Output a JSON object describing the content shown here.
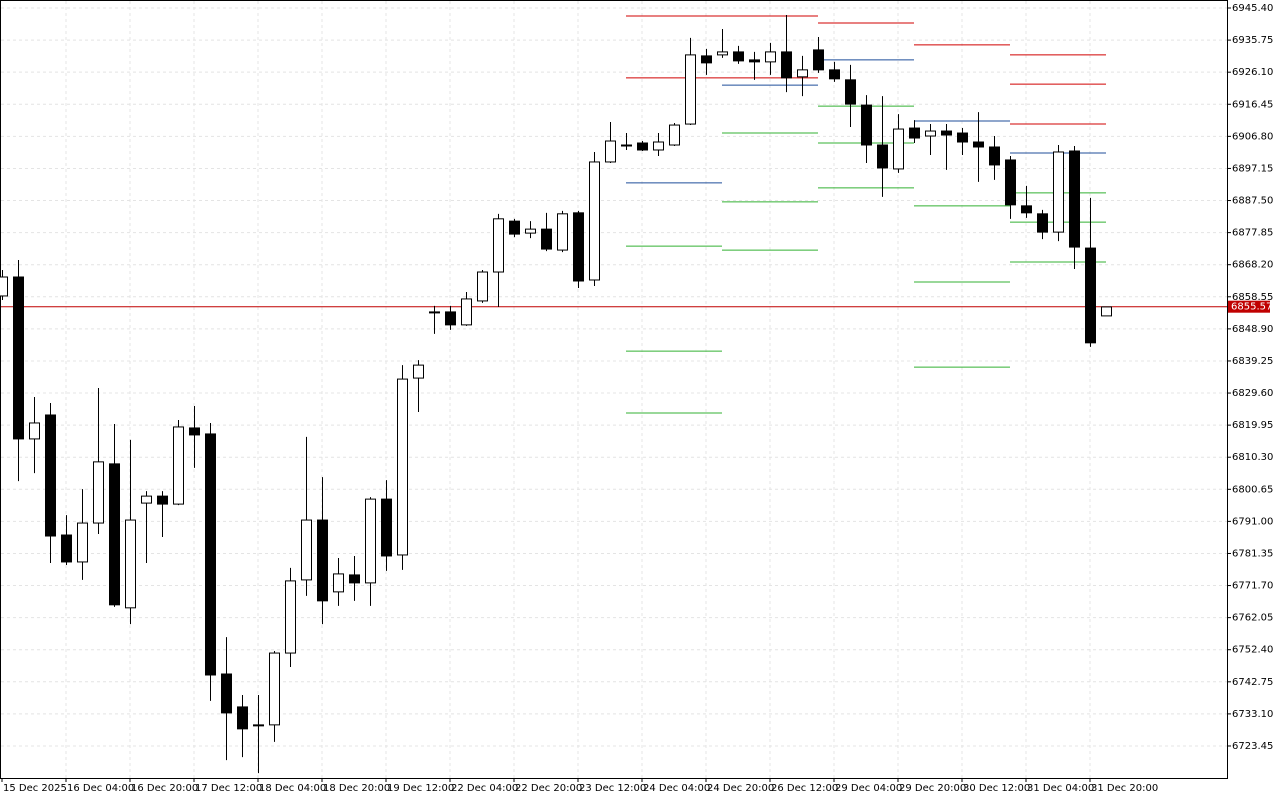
{
  "chart_data": {
    "type": "candlestick",
    "categories": [
      "15 Dec 2025",
      null,
      null,
      null,
      "16 Dec 04:00",
      null,
      null,
      null,
      "16 Dec 20:00",
      null,
      null,
      null,
      "17 Dec 12:00",
      null,
      null,
      null,
      "18 Dec 04:00",
      null,
      null,
      null,
      "18 Dec 20:00",
      null,
      null,
      null,
      "19 Dec 12:00",
      null,
      null,
      null,
      "22 Dec 04:00",
      null,
      null,
      null,
      "22 Dec 20:00",
      null,
      null,
      null,
      "23 Dec 12:00",
      null,
      null,
      null,
      "24 Dec 04:00",
      null,
      null,
      null,
      "24 Dec 20:00",
      null,
      null,
      null,
      "26 Dec 12:00",
      null,
      null,
      null,
      "29 Dec 04:00",
      null,
      null,
      null,
      "29 Dec 20:00",
      null,
      null,
      null,
      "30 Dec 12:00",
      null,
      null,
      null,
      "31 Dec 04:00",
      null,
      null,
      null,
      "31 Dec 20:00",
      null
    ],
    "open": [
      6858.8,
      6864.5,
      6815.8,
      6823.0,
      6786.9,
      6778.8,
      6790.5,
      6808.3,
      6765.0,
      6796.5,
      6798.6,
      6796.2,
      6819.1,
      6817.3,
      6745.1,
      6735.2,
      6729.8,
      6729.8,
      6751.4,
      6773.4,
      6791.4,
      6769.8,
      6774.9,
      6772.5,
      6797.7,
      6780.9,
      6834.1,
      6853.7,
      6854.0,
      6850.1,
      6857.3,
      6866.0,
      6881.3,
      6877.7,
      6878.9,
      6872.6,
      6883.8,
      6863.6,
      6899.1,
      6904.2,
      6904.8,
      6902.7,
      6904.2,
      6910.5,
      6931.0,
      6931.3,
      6932.2,
      6929.8,
      6929.2,
      6932.2,
      6924.7,
      6932.8,
      6926.8,
      6923.8,
      6916.2,
      6904.2,
      6897.0,
      6909.3,
      6906.9,
      6908.4,
      6907.8,
      6905.1,
      6903.6,
      6899.7,
      6885.9,
      6883.5,
      6878.0,
      6902.4,
      6873.2,
      6852.8
    ],
    "high": [
      6866.6,
      6869.6,
      6828.4,
      6826.6,
      6792.9,
      6800.7,
      6831.1,
      6820.3,
      6815.5,
      6800.1,
      6800.1,
      6821.5,
      6825.7,
      6820.6,
      6756.2,
      6738.8,
      6738.8,
      6752.0,
      6777.0,
      6816.4,
      6804.3,
      6780.0,
      6780.6,
      6798.3,
      6803.4,
      6838.0,
      6839.5,
      6855.8,
      6855.8,
      6860.0,
      6866.6,
      6883.5,
      6882.0,
      6881.3,
      6883.8,
      6884.4,
      6884.4,
      6902.1,
      6911.1,
      6907.8,
      6905.4,
      6907.8,
      6910.8,
      6936.4,
      6933.1,
      6939.1,
      6934.0,
      6932.2,
      6934.9,
      6943.3,
      6931.0,
      6936.7,
      6929.2,
      6928.3,
      6919.2,
      6918.9,
      6913.5,
      6911.7,
      6910.5,
      6910.5,
      6909.3,
      6914.1,
      6906.9,
      6900.9,
      6891.9,
      6884.7,
      6904.2,
      6903.9,
      6888.3,
      6855.5
    ],
    "low": [
      6857.6,
      6803.1,
      6805.5,
      6778.5,
      6777.9,
      6773.4,
      6787.2,
      6765.3,
      6760.1,
      6778.5,
      6786.3,
      6795.9,
      6807.1,
      6737.0,
      6719.2,
      6720.1,
      6715.3,
      6724.7,
      6747.2,
      6768.6,
      6760.1,
      6765.6,
      6767.1,
      6765.6,
      6776.1,
      6776.4,
      6823.9,
      6847.4,
      6848.6,
      6849.8,
      6856.7,
      6855.5,
      6876.5,
      6876.2,
      6872.3,
      6872.0,
      6861.2,
      6861.8,
      6898.8,
      6902.7,
      6902.4,
      6900.9,
      6903.9,
      6910.2,
      6925.3,
      6930.4,
      6928.6,
      6923.8,
      6925.3,
      6920.1,
      6918.9,
      6925.9,
      6923.2,
      6909.6,
      6898.8,
      6888.6,
      6895.8,
      6904.8,
      6901.2,
      6896.7,
      6901.2,
      6893.1,
      6893.7,
      6882.0,
      6882.3,
      6875.9,
      6875.3,
      6866.9,
      6843.5,
      6852.8
    ],
    "close": [
      6864.5,
      6815.8,
      6820.6,
      6786.6,
      6778.8,
      6790.5,
      6808.9,
      6765.9,
      6791.4,
      6798.6,
      6796.2,
      6819.4,
      6817.0,
      6744.8,
      6733.4,
      6728.6,
      6729.8,
      6751.4,
      6773.1,
      6791.4,
      6767.1,
      6775.2,
      6772.5,
      6797.7,
      6780.6,
      6833.8,
      6838.0,
      6854.0,
      6850.1,
      6857.9,
      6866.0,
      6882.0,
      6877.4,
      6878.9,
      6872.9,
      6883.5,
      6863.3,
      6899.1,
      6905.4,
      6904.2,
      6902.7,
      6905.1,
      6910.2,
      6931.3,
      6928.9,
      6932.2,
      6929.5,
      6929.2,
      6932.2,
      6924.4,
      6926.8,
      6926.8,
      6924.1,
      6916.5,
      6904.2,
      6897.3,
      6909.0,
      6906.3,
      6908.4,
      6907.2,
      6905.1,
      6903.6,
      6898.2,
      6886.2,
      6883.8,
      6878.0,
      6902.1,
      6873.5,
      6844.7,
      6855.5
    ],
    "up_color": "#ffffff",
    "down_color": "#000000",
    "ylim": [
      6713.82,
      6947.81
    ],
    "yticks": [
      {
        "value": 6945.4,
        "label": "6945.40"
      },
      {
        "value": 6935.75,
        "label": "6935.75"
      },
      {
        "value": 6926.1,
        "label": "6926.10"
      },
      {
        "value": 6916.45,
        "label": "6916.45"
      },
      {
        "value": 6906.8,
        "label": "6906.80"
      },
      {
        "value": 6897.15,
        "label": "6897.15"
      },
      {
        "value": 6887.5,
        "label": "6887.50"
      },
      {
        "value": 6877.85,
        "label": "6877.85"
      },
      {
        "value": 6868.2,
        "label": "6868.20"
      },
      {
        "value": 6858.55,
        "label": "6858.55"
      },
      {
        "value": 6848.9,
        "label": "6848.90"
      },
      {
        "value": 6839.25,
        "label": "6839.25"
      },
      {
        "value": 6829.6,
        "label": "6829.60"
      },
      {
        "value": 6819.95,
        "label": "6819.95"
      },
      {
        "value": 6810.3,
        "label": "6810.30"
      },
      {
        "value": 6800.65,
        "label": "6800.65"
      },
      {
        "value": 6791.0,
        "label": "6791.00"
      },
      {
        "value": 6781.35,
        "label": "6781.35"
      },
      {
        "value": 6771.7,
        "label": "6771.70"
      },
      {
        "value": 6762.05,
        "label": "6762.05"
      },
      {
        "value": 6752.4,
        "label": "6752.40"
      },
      {
        "value": 6742.75,
        "label": "6742.75"
      },
      {
        "value": 6733.1,
        "label": "6733.10"
      },
      {
        "value": 6723.45,
        "label": "6723.45"
      }
    ],
    "grid": true,
    "current_price": 6855.57,
    "current_price_color": "#c00000",
    "level_blocks": [
      {
        "from": 39,
        "to": 45,
        "levels": [
          {
            "color": "#d00000",
            "value": 6943.0
          },
          {
            "color": "#d00000",
            "value": 6924.4
          },
          {
            "color": "#1f4e9a",
            "value": 6892.8
          },
          {
            "color": "#33b033",
            "value": 6873.8
          },
          {
            "color": "#33b033",
            "value": 6842.2
          },
          {
            "color": "#33b033",
            "value": 6823.6
          }
        ]
      },
      {
        "from": 45,
        "to": 51,
        "levels": [
          {
            "color": "#d00000",
            "value": 6943.0
          },
          {
            "color": "#d00000",
            "value": 6924.4
          },
          {
            "color": "#1f4e9a",
            "value": 6922.2
          },
          {
            "color": "#33b033",
            "value": 6907.8
          },
          {
            "color": "#33b033",
            "value": 6887.1
          },
          {
            "color": "#33b033",
            "value": 6872.6
          }
        ]
      },
      {
        "from": 51,
        "to": 57,
        "levels": [
          {
            "color": "#d00000",
            "value": 6940.9
          },
          {
            "color": "#1f4e9a",
            "value": 6929.8
          },
          {
            "color": "#33b033",
            "value": 6915.9
          },
          {
            "color": "#33b033",
            "value": 6904.8
          },
          {
            "color": "#33b033",
            "value": 6891.3
          }
        ]
      },
      {
        "from": 57,
        "to": 63,
        "levels": [
          {
            "color": "#d00000",
            "value": 6934.3
          },
          {
            "color": "#1f4e9a",
            "value": 6911.4
          },
          {
            "color": "#33b033",
            "value": 6885.9
          },
          {
            "color": "#33b033",
            "value": 6863.0
          },
          {
            "color": "#33b033",
            "value": 6837.4
          }
        ]
      },
      {
        "from": 63,
        "to": 69,
        "levels": [
          {
            "color": "#d00000",
            "value": 6931.3
          },
          {
            "color": "#d00000",
            "value": 6922.5
          },
          {
            "color": "#d00000",
            "value": 6910.5
          },
          {
            "color": "#1f4e9a",
            "value": 6901.8
          },
          {
            "color": "#33b033",
            "value": 6889.8
          },
          {
            "color": "#33b033",
            "value": 6881.0
          },
          {
            "color": "#33b033",
            "value": 6869.0
          }
        ]
      }
    ]
  }
}
